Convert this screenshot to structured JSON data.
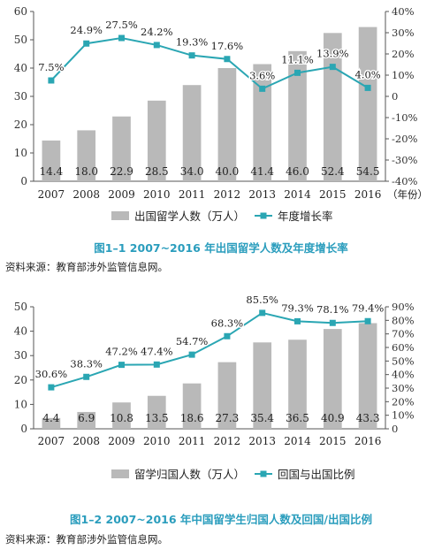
{
  "colors": {
    "bar": "#b9b9b9",
    "line": "#2aa6b3",
    "axis": "#555555",
    "caption": "#2a9dbd"
  },
  "figures": [
    {
      "caption": "图1–1   2007~2016 年出国留学人数及年度增长率",
      "source": "资料来源：教育部涉外监管信息网。",
      "x_unit_label": "（年份）",
      "legend": {
        "bar": "出国留学人数（万人）",
        "line": "年度增长率"
      }
    },
    {
      "caption": "图1–2   2007~2016 年中国留学生归国人数及回国/出国比例",
      "source": "资料来源：教育部涉外监管信息网。",
      "x_unit_label": "",
      "legend": {
        "bar": "留学归国人数（万人）",
        "line": "回国与出国比例"
      }
    }
  ],
  "chart_data": [
    {
      "type": "bar",
      "categories": [
        "2007",
        "2008",
        "2009",
        "2010",
        "2011",
        "2012",
        "2013",
        "2014",
        "2015",
        "2016"
      ],
      "series": [
        {
          "name": "出国留学人数（万人）",
          "type": "bar",
          "axis": "left",
          "values": [
            14.4,
            18.0,
            22.9,
            28.5,
            34.0,
            40.0,
            41.4,
            46.0,
            52.4,
            54.5
          ],
          "labels": [
            "14.4",
            "18.0",
            "22.9",
            "28.5",
            "34.0",
            "40.0",
            "41.4",
            "46.0",
            "52.4",
            "54.5"
          ]
        },
        {
          "name": "年度增长率",
          "type": "line",
          "axis": "right",
          "values": [
            7.5,
            24.9,
            27.5,
            24.2,
            19.3,
            17.6,
            3.6,
            11.1,
            13.9,
            4.0
          ],
          "labels": [
            "7.5%",
            "24.9%",
            "27.5%",
            "24.2%",
            "19.3%",
            "17.6%",
            "3.6%",
            "11.1%",
            "13.9%",
            "4.0%"
          ]
        }
      ],
      "y_left": {
        "range": [
          0,
          60
        ],
        "ticks": [
          "0",
          "10",
          "20",
          "30",
          "40",
          "50",
          "60"
        ]
      },
      "y_right": {
        "range": [
          -40,
          40
        ],
        "ticks": [
          "-40%",
          "-30%",
          "-20%",
          "-10%",
          "0",
          "10%",
          "20%",
          "30%",
          "40%"
        ]
      },
      "legend_position": "bottom",
      "grid": false
    },
    {
      "type": "bar",
      "categories": [
        "2007",
        "2008",
        "2009",
        "2010",
        "2011",
        "2012",
        "2013",
        "2014",
        "2015",
        "2016"
      ],
      "series": [
        {
          "name": "留学归国人数（万人）",
          "type": "bar",
          "axis": "left",
          "values": [
            4.4,
            6.9,
            10.8,
            13.5,
            18.6,
            27.3,
            35.4,
            36.5,
            40.9,
            43.3
          ],
          "labels": [
            "4.4",
            "6.9",
            "10.8",
            "13.5",
            "18.6",
            "27.3",
            "35.4",
            "36.5",
            "40.9",
            "43.3"
          ]
        },
        {
          "name": "回国与出国比例",
          "type": "line",
          "axis": "right",
          "values": [
            30.6,
            38.3,
            47.2,
            47.4,
            54.7,
            68.3,
            85.5,
            79.3,
            78.1,
            79.4
          ],
          "labels": [
            "30.6%",
            "38.3%",
            "47.2%",
            "47.4%",
            "54.7%",
            "68.3%",
            "85.5%",
            "79.3%",
            "78.1%",
            "79.4%"
          ]
        }
      ],
      "y_left": {
        "range": [
          0,
          50
        ],
        "ticks": [
          "0",
          "10",
          "20",
          "30",
          "40",
          "50"
        ]
      },
      "y_right": {
        "range": [
          0,
          90
        ],
        "ticks": [
          "0",
          "10%",
          "20%",
          "30%",
          "40%",
          "50%",
          "60%",
          "70%",
          "80%",
          "90%"
        ]
      },
      "legend_position": "bottom",
      "grid": false
    }
  ]
}
